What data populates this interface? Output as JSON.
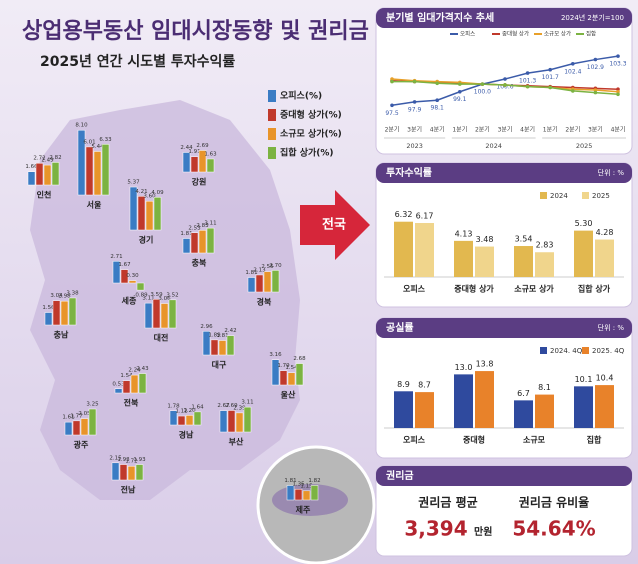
{
  "header": {
    "title": "상업용부동산 임대시장동향 및 권리금",
    "subtitle": "2025년 연간 시도별 투자수익률",
    "callout": "전국"
  },
  "chart_data": [
    {
      "type": "mapbar",
      "categories": [
        "인천",
        "서울",
        "강원",
        "경기",
        "충북",
        "세종",
        "충남",
        "대전",
        "경북",
        "대구",
        "전북",
        "울산",
        "광주",
        "경남",
        "부산",
        "전남",
        "제주"
      ],
      "series": [
        {
          "name": "오피스(%)",
          "color": "#3a7cc4",
          "values": [
            1.66,
            8.1,
            2.44,
            5.37,
            1.81,
            2.71,
            1.56,
            3.11,
            1.81,
            2.96,
            0.53,
            3.16,
            1.61,
            1.78,
            2.67,
            2.15,
            1.81
          ],
          "value_labels": [
            "1.66",
            "8.10",
            "2.44",
            "5.37",
            "1.81",
            "2.71",
            "1.56",
            "3.11",
            "1.81",
            "2.96",
            "0.53",
            "3.16",
            "1.61",
            "1.78",
            "2.67",
            "2.15",
            "1.81"
          ]
        },
        {
          "name": "중대형 상가(%)",
          "color": "#c0392b",
          "values": [
            2.72,
            6.01,
            1.91,
            4.21,
            2.53,
            1.67,
            3.04,
            3.59,
            2.13,
            1.89,
            1.54,
            1.79,
            1.77,
            1.12,
            2.69,
            1.93,
            1.35
          ],
          "value_labels": [
            "2.72",
            "6.01",
            "1.91",
            "4.21",
            "2.53",
            "1.67",
            "3.04",
            "3.59",
            "2.13",
            "1.89",
            "1.54",
            "1.79",
            "1.77",
            "1.12",
            "2.69",
            "1.93",
            "1.35"
          ]
        },
        {
          "name": "소규모 상가(%)",
          "color": "#e8942a",
          "values": [
            2.49,
            5.44,
            2.69,
            3.6,
            2.83,
            0.3,
            2.98,
            3.06,
            2.55,
            1.81,
            2.24,
            1.54,
            2.05,
            1.2,
            2.39,
            1.72,
            1.15
          ],
          "value_labels": [
            "2.49",
            "5.44",
            "2.69",
            "3.60",
            "2.83",
            "0.30",
            "2.98",
            "3.06",
            "2.55",
            "1.81",
            "2.24",
            "1.54",
            "2.05",
            "1.20",
            "2.39",
            "1.72",
            "1.15"
          ]
        },
        {
          "name": "집합 상가(%)",
          "color": "#7cb342",
          "values": [
            2.82,
            6.33,
            1.63,
            4.09,
            3.11,
            -0.89,
            3.38,
            3.52,
            2.7,
            2.42,
            2.43,
            2.68,
            3.25,
            1.64,
            3.11,
            1.93,
            1.82
          ],
          "value_labels": [
            "2.82",
            "6.33",
            "1.63",
            "4.09",
            "3.11",
            "-0.89",
            "3.38",
            "3.52",
            "2.70",
            "2.42",
            "2.43",
            "2.68",
            "3.25",
            "1.64",
            "3.11",
            "1.93",
            "1.82"
          ]
        }
      ]
    },
    {
      "type": "line",
      "title": "분기별 임대가격지수 추세",
      "subtitle": "2024년 2분기=100",
      "categories": [
        "2분기",
        "3분기",
        "4분기",
        "1분기",
        "2분기",
        "3분기",
        "4분기",
        "1분기",
        "2분기",
        "3분기",
        "4분기"
      ],
      "years": [
        "2023",
        "2024",
        "2025"
      ],
      "ylim": [
        96,
        104.5
      ],
      "series": [
        {
          "name": "오피스",
          "color": "#3b5ba9",
          "values": [
            97.5,
            97.9,
            98.1,
            99.1,
            100.0,
            100.6,
            101.3,
            101.7,
            102.4,
            102.9,
            103.3
          ],
          "value_labels": [
            "97.5",
            "97.9",
            "98.1",
            "99.1",
            "100.0",
            "100.6",
            "101.3",
            "101.7",
            "102.4",
            "102.9",
            "103.3"
          ]
        },
        {
          "name": "중대형 상가",
          "color": "#c0392b",
          "values": [
            100.4,
            100.3,
            100.2,
            100.1,
            100.0,
            99.9,
            99.8,
            99.7,
            99.6,
            99.5,
            99.4
          ]
        },
        {
          "name": "소규모 상가",
          "color": "#e8a02a",
          "values": [
            100.6,
            100.4,
            100.3,
            100.2,
            100.0,
            99.9,
            99.7,
            99.6,
            99.4,
            99.3,
            99.1
          ]
        },
        {
          "name": "집합",
          "color": "#7cb342",
          "values": [
            100.3,
            100.3,
            100.1,
            100.0,
            100.0,
            99.9,
            99.7,
            99.6,
            99.2,
            99.0,
            98.8
          ]
        }
      ]
    },
    {
      "type": "bar",
      "title": "투자수익률",
      "unit": "단위 : %",
      "categories": [
        "오피스",
        "중대형 상가",
        "소규모 상가",
        "집합 상가"
      ],
      "ylim": [
        0,
        8
      ],
      "series": [
        {
          "name": "2024",
          "color": "#e2b84f",
          "values": [
            6.32,
            4.13,
            3.54,
            5.3
          ],
          "value_labels": [
            "6.32",
            "4.13",
            "3.54",
            "5.30"
          ]
        },
        {
          "name": "2025",
          "color": "#f0d58c",
          "values": [
            6.17,
            3.48,
            2.83,
            4.28
          ]
        }
      ]
    },
    {
      "type": "bar",
      "title": "공실률",
      "unit": "단위 : %",
      "categories": [
        "오피스",
        "중대형",
        "소규모",
        "집합"
      ],
      "ylim": [
        0,
        16
      ],
      "series": [
        {
          "name": "2024. 4Q",
          "color": "#2f4a9e",
          "values": [
            8.9,
            13.0,
            6.7,
            10.1
          ],
          "value_labels": [
            "8.9",
            "13.0",
            "6.7",
            "10.1"
          ]
        },
        {
          "name": "2025. 4Q",
          "color": "#e8822a",
          "values": [
            8.7,
            13.8,
            8.1,
            10.4
          ]
        }
      ]
    }
  ],
  "premium": {
    "title": "권리금",
    "items": [
      {
        "label": "권리금 평균",
        "value": "3,394",
        "unit": "만원"
      },
      {
        "label": "권리금 유비율",
        "value": "54.64%"
      }
    ]
  }
}
